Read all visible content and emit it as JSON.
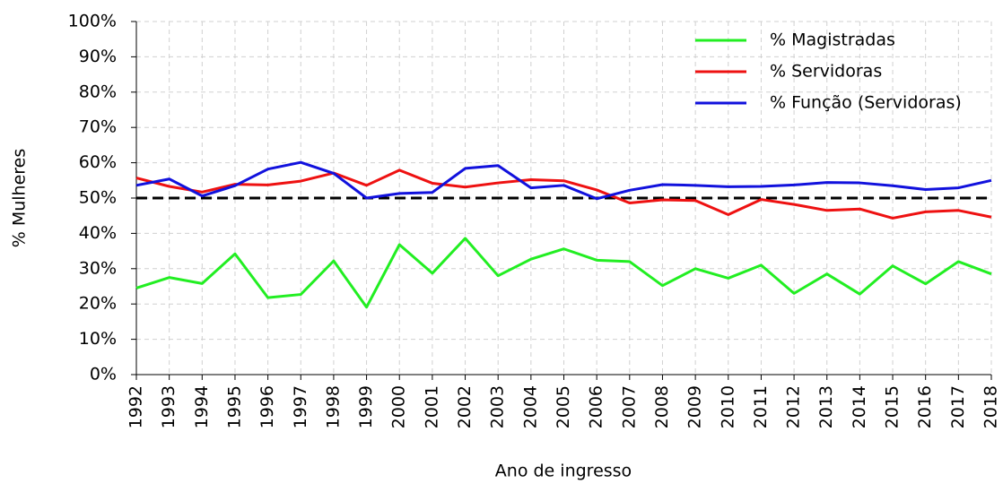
{
  "chart_data": {
    "type": "line",
    "x_label": "Ano de ingresso",
    "y_label": "% Mulheres",
    "x": [
      1992,
      1993,
      1994,
      1995,
      1996,
      1997,
      1998,
      1999,
      2000,
      2001,
      2002,
      2003,
      2004,
      2005,
      2006,
      2007,
      2008,
      2009,
      2010,
      2011,
      2012,
      2013,
      2014,
      2015,
      2016,
      2017,
      2018
    ],
    "xlim": [
      1992,
      2018
    ],
    "xticks": [
      1992,
      1993,
      1994,
      1995,
      1996,
      1997,
      1998,
      1999,
      2000,
      2001,
      2002,
      2003,
      2004,
      2005,
      2006,
      2007,
      2008,
      2009,
      2010,
      2011,
      2012,
      2013,
      2014,
      2015,
      2016,
      2017,
      2018
    ],
    "ylim": [
      0,
      100
    ],
    "yticks": [
      {
        "value": 0,
        "label": "0%"
      },
      {
        "value": 10,
        "label": "10%"
      },
      {
        "value": 20,
        "label": "20%"
      },
      {
        "value": 30,
        "label": "30%"
      },
      {
        "value": 40,
        "label": "40%"
      },
      {
        "value": 50,
        "label": "50%"
      },
      {
        "value": 60,
        "label": "60%"
      },
      {
        "value": 70,
        "label": "70%"
      },
      {
        "value": 80,
        "label": "80%"
      },
      {
        "value": 90,
        "label": "90%"
      },
      {
        "value": 100,
        "label": "100%"
      }
    ],
    "grid": true,
    "legend": "upper-right",
    "hline": {
      "value": 50,
      "color": "#000000",
      "style": "dashed"
    },
    "series": [
      {
        "name": "% Magistradas",
        "color": "#22ee22",
        "values": [
          24.5,
          27.5,
          25.8,
          34.2,
          21.8,
          22.7,
          32.2,
          19.1,
          36.8,
          28.7,
          38.6,
          28,
          32.7,
          35.6,
          32.4,
          32.0,
          25.2,
          30,
          27.3,
          31,
          23,
          28.5,
          22.8,
          30.8,
          25.7,
          32,
          28.5
        ]
      },
      {
        "name": "% Servidoras",
        "color": "#ee1111",
        "values": [
          55.7,
          53.3,
          51.7,
          53.9,
          53.7,
          54.8,
          57.1,
          53.6,
          57.9,
          54.2,
          53.1,
          54.3,
          55.2,
          54.9,
          52.3,
          48.6,
          49.5,
          49.3,
          45.3,
          49.6,
          48.2,
          46.5,
          46.9,
          44.3,
          46.1,
          46.5,
          44.6
        ]
      },
      {
        "name": "% Função (Servidoras)",
        "color": "#1111dd",
        "values": [
          53.6,
          55.4,
          50.6,
          53.5,
          58.2,
          60.1,
          57,
          50,
          51.3,
          51.6,
          58.4,
          59.2,
          52.9,
          53.6,
          49.8,
          52.2,
          53.8,
          53.6,
          53.2,
          53.3,
          53.7,
          54.4,
          54.3,
          53.5,
          52.4,
          52.9,
          55
        ]
      }
    ]
  }
}
